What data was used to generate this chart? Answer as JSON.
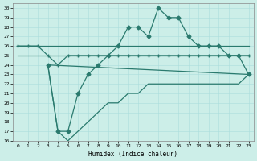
{
  "xlabel": "Humidex (Indice chaleur)",
  "xlim": [
    -0.5,
    23.5
  ],
  "ylim": [
    16,
    30.5
  ],
  "xticks": [
    0,
    1,
    2,
    3,
    4,
    5,
    6,
    7,
    8,
    9,
    10,
    11,
    12,
    13,
    14,
    15,
    16,
    17,
    18,
    19,
    20,
    21,
    22,
    23
  ],
  "yticks": [
    16,
    17,
    18,
    19,
    20,
    21,
    22,
    23,
    24,
    25,
    26,
    27,
    28,
    29,
    30
  ],
  "bg_color": "#cceee8",
  "line_color": "#2a7a6e",
  "grid_color": "#aadddd",
  "lines": [
    {
      "x": [
        0,
        1,
        2,
        3,
        4,
        5,
        6,
        7,
        8,
        9,
        10,
        11,
        12,
        13,
        14,
        15,
        16,
        17,
        18,
        19,
        20,
        21,
        22,
        23
      ],
      "y": [
        26,
        26,
        26,
        26,
        26,
        26,
        26,
        26,
        26,
        26,
        26,
        26,
        26,
        26,
        26,
        26,
        26,
        26,
        26,
        26,
        26,
        26,
        26,
        26
      ],
      "marker": null,
      "lw": 0.9
    },
    {
      "x": [
        0,
        1,
        2,
        3,
        4,
        5,
        6,
        7,
        8,
        9,
        10,
        11,
        12,
        13,
        14,
        15,
        16,
        17,
        18,
        19,
        20,
        21,
        22,
        23
      ],
      "y": [
        25,
        25,
        25,
        25,
        25,
        25,
        25,
        25,
        25,
        25,
        25,
        25,
        25,
        25,
        25,
        25,
        25,
        25,
        25,
        25,
        25,
        25,
        25,
        25
      ],
      "marker": null,
      "lw": 0.9
    },
    {
      "x": [
        0,
        1,
        2,
        3,
        4,
        5,
        6,
        7,
        8,
        9,
        10,
        11,
        12,
        13,
        14,
        15,
        16,
        17,
        18,
        19,
        20,
        21,
        22,
        23
      ],
      "y": [
        26,
        26,
        26,
        25,
        24,
        25,
        25,
        25,
        25,
        25,
        25,
        25,
        25,
        25,
        25,
        25,
        25,
        25,
        25,
        25,
        25,
        25,
        25,
        25
      ],
      "marker": "+",
      "lw": 0.9
    },
    {
      "x": [
        3,
        4,
        5,
        6,
        7,
        8,
        9,
        10,
        11,
        12,
        13,
        14,
        15,
        16,
        17,
        18,
        19,
        20,
        21,
        22,
        23
      ],
      "y": [
        24,
        17,
        17,
        21,
        23,
        24,
        25,
        26,
        28,
        28,
        27,
        30,
        29,
        29,
        27,
        26,
        26,
        26,
        25,
        25,
        23
      ],
      "marker": "D",
      "lw": 0.9
    },
    {
      "x": [
        3,
        4,
        5,
        6,
        7,
        8,
        9,
        10,
        11,
        12,
        13,
        14,
        15,
        16,
        17,
        18,
        19,
        20,
        21,
        22,
        23
      ],
      "y": [
        24,
        17,
        16,
        17,
        18,
        19,
        20,
        20,
        21,
        21,
        22,
        22,
        22,
        22,
        22,
        22,
        22,
        22,
        22,
        22,
        23
      ],
      "marker": null,
      "lw": 0.9
    },
    {
      "x": [
        3,
        23
      ],
      "y": [
        24,
        23
      ],
      "marker": null,
      "lw": 0.9
    }
  ]
}
